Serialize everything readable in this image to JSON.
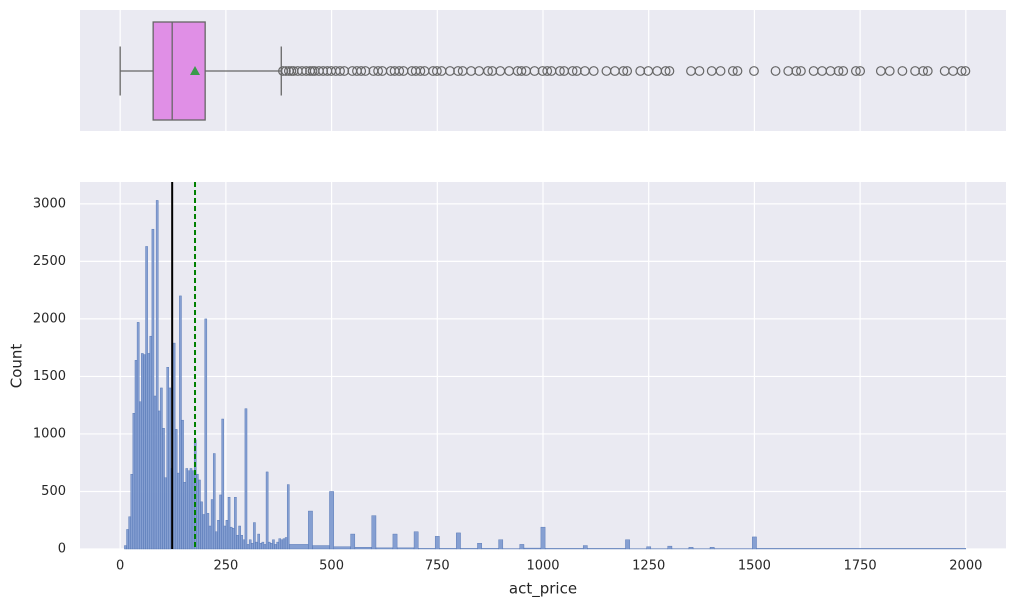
{
  "chart_data": [
    {
      "type": "box",
      "xlim": [
        -95,
        2095
      ],
      "xticks": [
        0,
        250,
        500,
        750,
        1000,
        1250,
        1500,
        1750,
        2000
      ],
      "grid": true,
      "color": "#e08fe6",
      "edge_color": "#666666",
      "mean_color": "#3a9a4a",
      "min": 0,
      "q1": 78,
      "median": 123,
      "q3": 201,
      "max": 381,
      "mean": 177,
      "outliers": [
        385,
        392,
        399,
        405,
        410,
        420,
        430,
        440,
        449,
        455,
        460,
        470,
        480,
        490,
        499,
        510,
        520,
        530,
        549,
        560,
        570,
        580,
        599,
        610,
        620,
        640,
        649,
        660,
        670,
        690,
        699,
        710,
        720,
        740,
        749,
        760,
        780,
        799,
        810,
        830,
        849,
        870,
        880,
        899,
        920,
        940,
        949,
        960,
        980,
        999,
        1010,
        1020,
        1040,
        1050,
        1070,
        1080,
        1099,
        1120,
        1150,
        1170,
        1190,
        1199,
        1230,
        1249,
        1270,
        1290,
        1299,
        1350,
        1370,
        1399,
        1420,
        1449,
        1460,
        1499,
        1550,
        1580,
        1599,
        1610,
        1640,
        1660,
        1680,
        1699,
        1710,
        1740,
        1750,
        1799,
        1820,
        1850,
        1880,
        1899,
        1910,
        1950,
        1970,
        1990,
        1999
      ]
    },
    {
      "type": "histogram",
      "xlabel": "act_price",
      "ylabel": "Count",
      "xlim": [
        -95,
        2095
      ],
      "xticks": [
        0,
        250,
        500,
        750,
        1000,
        1250,
        1500,
        1750,
        2000
      ],
      "ylim": [
        0,
        3190
      ],
      "yticks": [
        0,
        500,
        1000,
        1500,
        2000,
        2500,
        3000
      ],
      "grid": true,
      "color": "#7f9bd0",
      "edge_color": "#4c6fb0",
      "median_color": "#000000",
      "mean_color": "#008000",
      "bins": [
        10,
        15,
        20,
        25,
        30,
        35,
        40,
        45,
        50,
        55,
        60,
        65,
        70,
        75,
        80,
        85,
        90,
        95,
        100,
        105,
        110,
        115,
        120,
        125,
        130,
        135,
        140,
        145,
        150,
        155,
        160,
        165,
        170,
        175,
        180,
        185,
        190,
        195,
        200,
        205,
        210,
        215,
        220,
        225,
        230,
        235,
        240,
        245,
        250,
        255,
        260,
        265,
        270,
        275,
        280,
        285,
        290,
        295,
        300,
        305,
        310,
        315,
        320,
        325,
        330,
        335,
        340,
        345,
        350,
        355,
        360,
        365,
        370,
        375,
        380,
        385,
        390,
        395,
        400,
        445,
        455,
        495,
        505,
        545,
        555,
        595,
        605,
        645,
        655,
        695,
        705,
        745,
        755,
        795,
        805,
        845,
        855,
        895,
        905,
        945,
        955,
        995,
        1005,
        1095,
        1105,
        1195,
        1205,
        1245,
        1255,
        1295,
        1305,
        1345,
        1355,
        1395,
        1405,
        1495,
        1505,
        2000
      ],
      "counts": [
        30,
        170,
        280,
        650,
        1180,
        1640,
        1970,
        1280,
        1700,
        1690,
        2630,
        1700,
        1850,
        2780,
        1330,
        3030,
        1200,
        1400,
        1050,
        620,
        1580,
        1400,
        700,
        1790,
        1040,
        660,
        2200,
        1120,
        580,
        700,
        680,
        700,
        680,
        950,
        650,
        600,
        410,
        300,
        2000,
        310,
        200,
        430,
        830,
        150,
        250,
        470,
        1130,
        200,
        250,
        450,
        190,
        180,
        450,
        120,
        200,
        120,
        80,
        1220,
        40,
        80,
        50,
        230,
        60,
        130,
        50,
        60,
        40,
        670,
        60,
        50,
        80,
        40,
        60,
        90,
        80,
        90,
        100,
        560,
        40,
        330,
        30,
        500,
        20,
        130,
        15,
        290,
        10,
        130,
        10,
        150,
        5,
        110,
        5,
        140,
        5,
        50,
        5,
        80,
        3,
        40,
        8,
        190,
        5,
        30,
        5,
        80,
        2,
        20,
        2,
        25,
        2,
        15,
        2,
        15,
        3,
        105,
        5
      ]
    }
  ]
}
